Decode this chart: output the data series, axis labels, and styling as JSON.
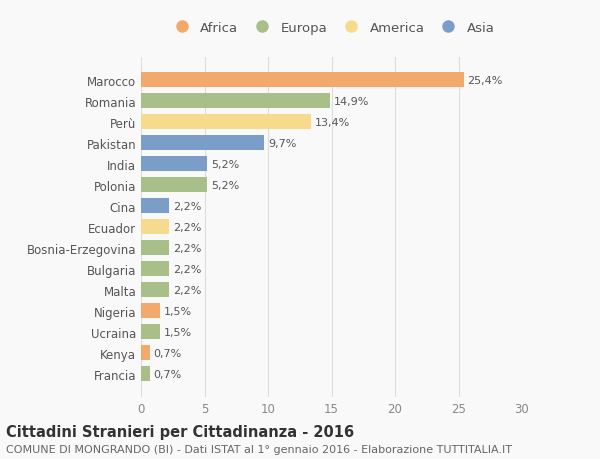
{
  "countries": [
    "Marocco",
    "Romania",
    "Perù",
    "Pakistan",
    "India",
    "Polonia",
    "Cina",
    "Ecuador",
    "Bosnia-Erzegovina",
    "Bulgaria",
    "Malta",
    "Nigeria",
    "Ucraina",
    "Kenya",
    "Francia"
  ],
  "values": [
    25.4,
    14.9,
    13.4,
    9.7,
    5.2,
    5.2,
    2.2,
    2.2,
    2.2,
    2.2,
    2.2,
    1.5,
    1.5,
    0.7,
    0.7
  ],
  "labels": [
    "25,4%",
    "14,9%",
    "13,4%",
    "9,7%",
    "5,2%",
    "5,2%",
    "2,2%",
    "2,2%",
    "2,2%",
    "2,2%",
    "2,2%",
    "1,5%",
    "1,5%",
    "0,7%",
    "0,7%"
  ],
  "continents": [
    "Africa",
    "Europa",
    "America",
    "Asia",
    "Asia",
    "Europa",
    "Asia",
    "America",
    "Europa",
    "Europa",
    "Europa",
    "Africa",
    "Europa",
    "Africa",
    "Europa"
  ],
  "colors": {
    "Africa": "#F2A96B",
    "Europa": "#A8BF8A",
    "America": "#F5DB8B",
    "Asia": "#7B9EC9"
  },
  "legend_order": [
    "Africa",
    "Europa",
    "America",
    "Asia"
  ],
  "xlim": [
    0,
    30
  ],
  "xticks": [
    0,
    5,
    10,
    15,
    20,
    25,
    30
  ],
  "title": "Cittadini Stranieri per Cittadinanza - 2016",
  "subtitle": "COMUNE DI MONGRANDO (BI) - Dati ISTAT al 1° gennaio 2016 - Elaborazione TUTTITALIA.IT",
  "background_color": "#f9f9f9",
  "bar_height": 0.72,
  "title_fontsize": 10.5,
  "subtitle_fontsize": 8,
  "label_fontsize": 8,
  "tick_fontsize": 8.5,
  "legend_fontsize": 9.5
}
